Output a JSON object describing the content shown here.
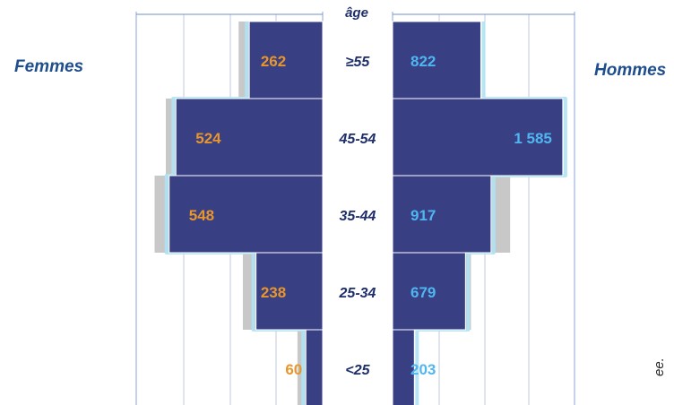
{
  "chart_data": {
    "type": "bar",
    "orientation": "horizontal-population-pyramid",
    "axis_title": "âge",
    "left_title": "Femmes",
    "right_title": "Hommes",
    "categories": [
      "≥55",
      "45-54",
      "35-44",
      "25-34",
      "<25"
    ],
    "series": [
      {
        "name": "Femmes",
        "side": "left",
        "values": [
          262,
          524,
          548,
          238,
          60
        ],
        "labels": [
          "262",
          "524",
          "548",
          "238",
          "60"
        ]
      },
      {
        "name": "Hommes",
        "side": "right",
        "values": [
          822,
          1585,
          917,
          679,
          203
        ],
        "labels": [
          "822",
          "1 585",
          "917",
          "679",
          "203"
        ]
      }
    ],
    "reference_profile": {
      "left": [
        300,
        560,
        600,
        285,
        90
      ],
      "right": [
        822,
        1585,
        1095,
        730,
        203
      ]
    },
    "grid": true,
    "colors": {
      "bar": "#383f83",
      "bar_edge": "#ffffff",
      "glow": "#aee2f5",
      "shadow": "#c8c8c8",
      "female_label": "#e8952c",
      "male_label": "#4fb6f0",
      "age_label": "#1f2f6b",
      "axis": "#6f8fce",
      "grid": "#9aa7c8"
    }
  },
  "clipped_text": "ee."
}
